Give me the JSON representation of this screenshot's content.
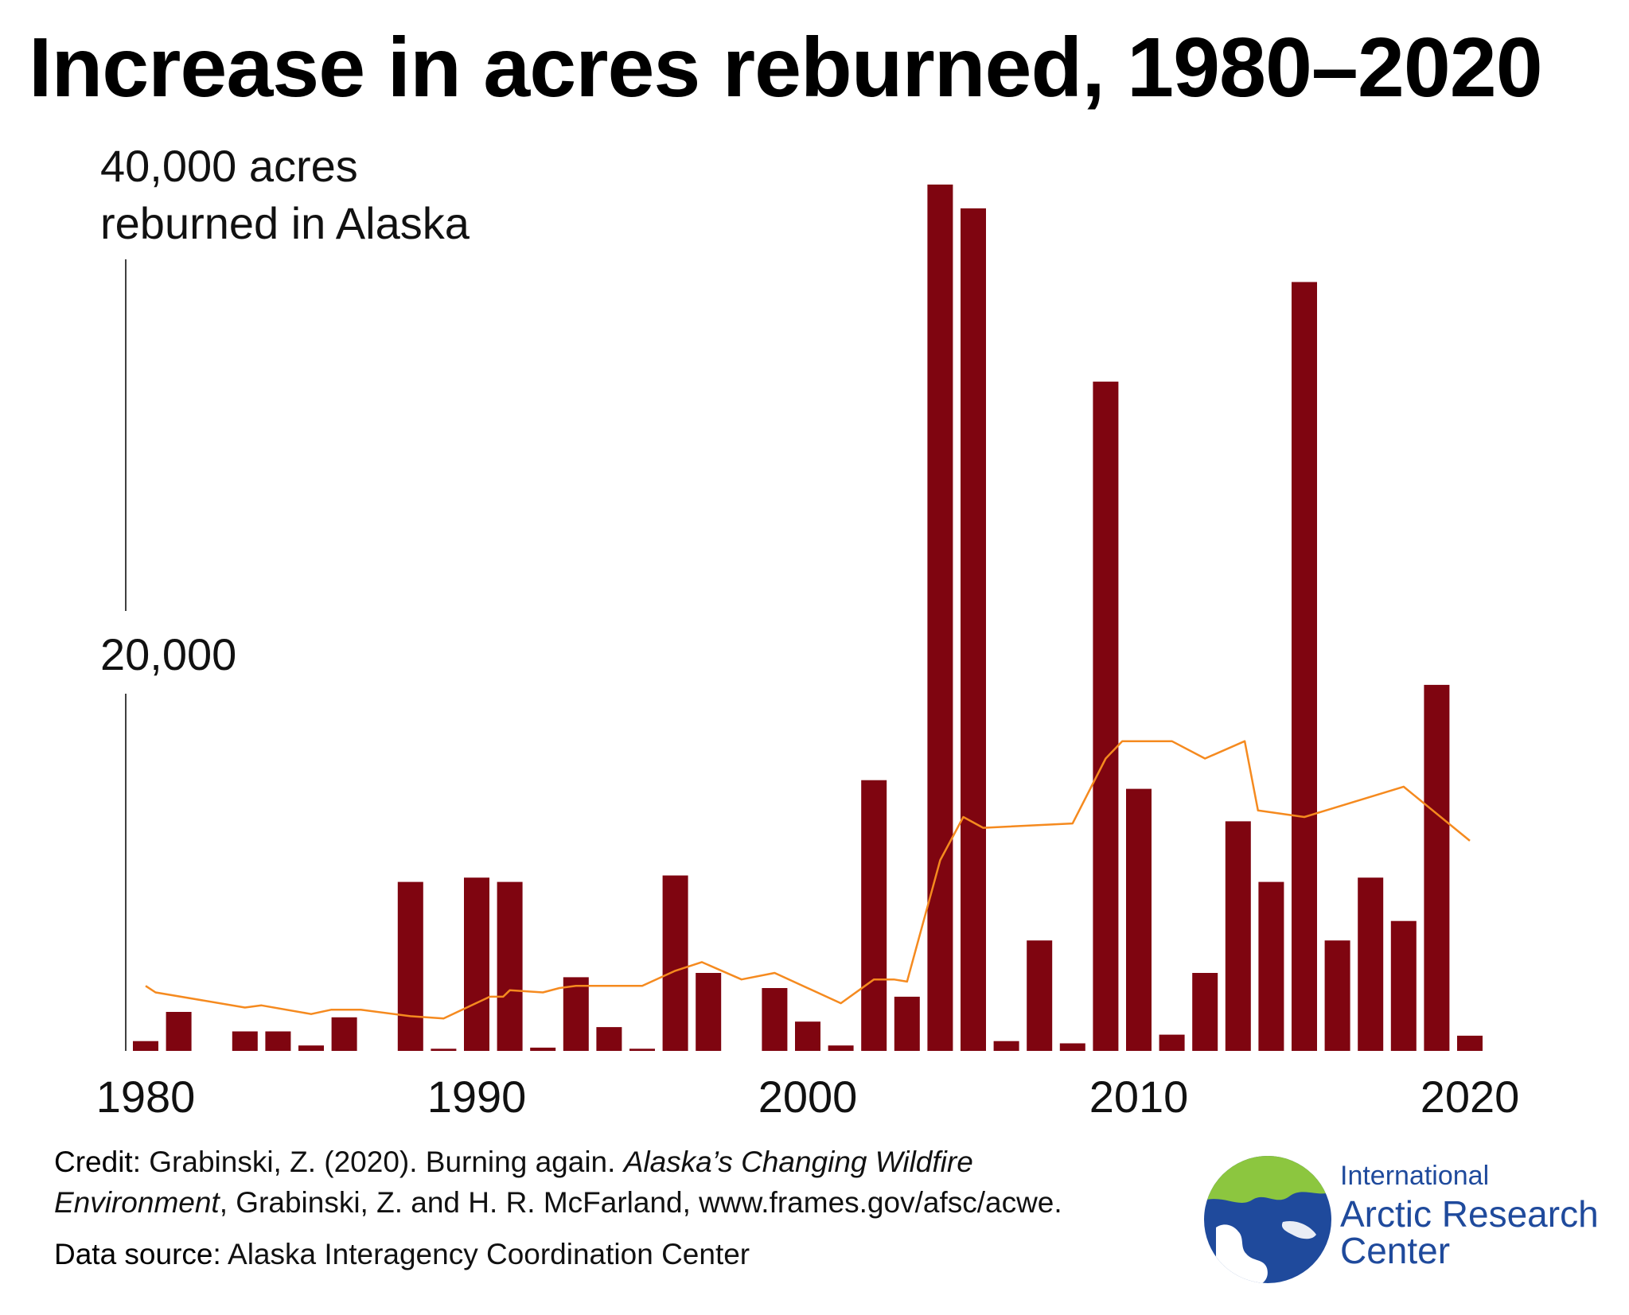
{
  "chart_data": {
    "type": "bar",
    "title": "Increase in acres reburned, 1980–2020",
    "ylabel_lines": [
      "40,000 acres",
      "reburned in Alaska"
    ],
    "y_tick_labels": [
      "20,000"
    ],
    "x_tick_labels": [
      "1980",
      "1990",
      "2000",
      "2010",
      "2020"
    ],
    "x_ticks": [
      1980,
      1990,
      2000,
      2010,
      2020
    ],
    "ylim": [
      0,
      40000
    ],
    "grid": false,
    "legend": "none",
    "series": [
      {
        "type": "bar",
        "color": "#7f0510",
        "x": [
          1980,
          1981,
          1983,
          1984,
          1985,
          1986,
          1988,
          1989,
          1990,
          1991,
          1992,
          1993,
          1994,
          1995,
          1996,
          1997,
          1999,
          2000,
          2001,
          2002,
          2003,
          2004,
          2005,
          2006,
          2007,
          2008,
          2009,
          2010,
          2011,
          2012,
          2013,
          2014,
          2015,
          2016,
          2017,
          2018,
          2019,
          2020
        ],
        "values": [
          450,
          1800,
          900,
          900,
          250,
          1550,
          7800,
          100,
          8000,
          7800,
          150,
          3400,
          1100,
          100,
          8100,
          3600,
          2900,
          1350,
          250,
          12500,
          2500,
          40000,
          38900,
          450,
          5100,
          350,
          30900,
          12100,
          750,
          3600,
          10600,
          7800,
          35500,
          5100,
          8000,
          6000,
          16900,
          700
        ]
      },
      {
        "type": "line",
        "color": "#f58a1f",
        "x": [
          1980,
          1980.3,
          1983,
          1983.5,
          1985,
          1985.6,
          1986.5,
          1988,
          1989,
          1990.4,
          1990.8,
          1991,
          1992,
          1992.5,
          1993,
          1995,
          1996,
          1996.8,
          1998,
          1999,
          2001,
          2002,
          2002.6,
          2003,
          2004,
          2004.7,
          2005.3,
          2008,
          2009,
          2009.5,
          2010.5,
          2011,
          2012,
          2013.2,
          2013.6,
          2015,
          2018,
          2020
        ],
        "values": [
          3000,
          2700,
          2000,
          2100,
          1700,
          1900,
          1900,
          1600,
          1500,
          2500,
          2500,
          2800,
          2700,
          2900,
          3000,
          3000,
          3700,
          4100,
          3300,
          3600,
          2200,
          3300,
          3300,
          3200,
          8800,
          10800,
          10300,
          10500,
          13500,
          14300,
          14300,
          14300,
          13500,
          14300,
          11100,
          10800,
          12200,
          9700
        ]
      }
    ]
  },
  "footer": {
    "credit_label": "Credit:",
    "credit_text_1": " Grabinski, Z. (2020). Burning again. ",
    "credit_italic_1": "Alaska’s Changing Wildfire",
    "credit_italic_2": "Environment",
    "credit_text_2": ", Grabinski, Z. and H. R. McFarland, www.frames.gov/afsc/acwe.",
    "source_label": "Data source:",
    "source_text": " Alaska Interagency Coordination Center"
  },
  "logo": {
    "line1": "International",
    "line2": "Arctic Research",
    "line3": "Center"
  },
  "colors": {
    "bar": "#7f0510",
    "line": "#f58a1f",
    "logo_blue": "#1f4a9c",
    "logo_green": "#8cc63f"
  }
}
